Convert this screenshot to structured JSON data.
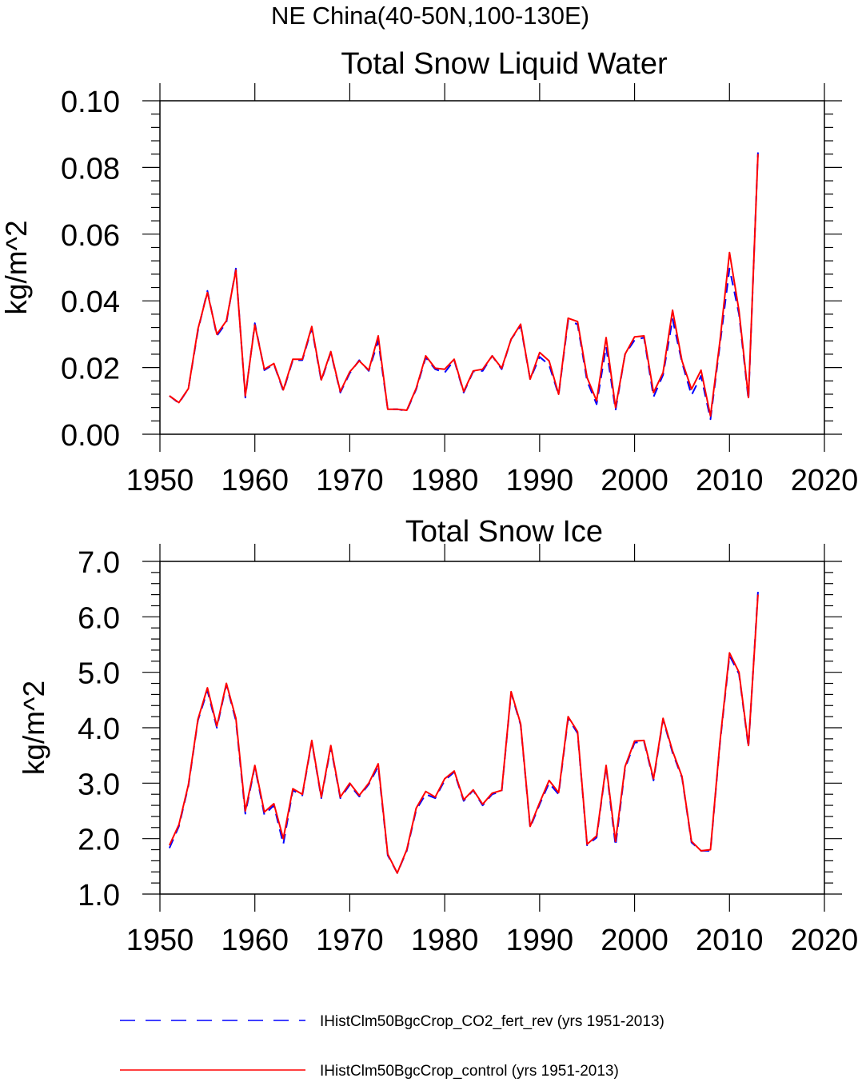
{
  "page": {
    "suptitle": "NE China(40-50N,100-130E)"
  },
  "legend": {
    "placement": "bottom",
    "items": [
      {
        "label": "IHistClm50BgcCrop_CO2_fert_rev (yrs 1951-2013)",
        "color": "#0000ff",
        "style": "dashed"
      },
      {
        "label": "IHistClm50BgcCrop_control (yrs 1951-2013)",
        "color": "#ff0000",
        "style": "solid"
      }
    ]
  },
  "chart_data": [
    {
      "type": "line",
      "title": "Total Snow Liquid Water",
      "xlabel": "",
      "ylabel": "kg/m^2",
      "xlim": [
        1950,
        2020
      ],
      "ylim": [
        0,
        0.1
      ],
      "xticks": [
        1950,
        1960,
        1970,
        1980,
        1990,
        2000,
        2010,
        2020
      ],
      "yticks": [
        0,
        0.02,
        0.04,
        0.06,
        0.08,
        0.1
      ],
      "ytick_labels": [
        "0.00",
        "0.02",
        "0.04",
        "0.06",
        "0.08",
        "0.10"
      ],
      "grid": false,
      "x": [
        1951,
        1952,
        1953,
        1954,
        1955,
        1956,
        1957,
        1958,
        1959,
        1960,
        1961,
        1962,
        1963,
        1964,
        1965,
        1966,
        1967,
        1968,
        1969,
        1970,
        1971,
        1972,
        1973,
        1974,
        1975,
        1976,
        1977,
        1978,
        1979,
        1980,
        1981,
        1982,
        1983,
        1984,
        1985,
        1986,
        1987,
        1988,
        1989,
        1990,
        1991,
        1992,
        1993,
        1994,
        1995,
        1996,
        1997,
        1998,
        1999,
        2000,
        2001,
        2002,
        2003,
        2004,
        2005,
        2006,
        2007,
        2008,
        2009,
        2010,
        2011,
        2012,
        2013
      ],
      "series": [
        {
          "name": "IHistClm50BgcCrop_CO2_fert_rev (yrs 1951-2013)",
          "color": "#0000ff",
          "style": "dashed",
          "values": [
            0.0115,
            0.0093,
            0.0137,
            0.031,
            0.043,
            0.0295,
            0.0335,
            0.0497,
            0.011,
            0.0333,
            0.0192,
            0.021,
            0.013,
            0.0222,
            0.0222,
            0.0318,
            0.016,
            0.0245,
            0.0125,
            0.0183,
            0.0222,
            0.019,
            0.028,
            0.0075,
            0.0075,
            0.007,
            0.0135,
            0.023,
            0.0195,
            0.0185,
            0.0222,
            0.0125,
            0.0188,
            0.019,
            0.0235,
            0.0195,
            0.0285,
            0.0325,
            0.0165,
            0.0232,
            0.0208,
            0.0118,
            0.034,
            0.033,
            0.016,
            0.009,
            0.0262,
            0.0072,
            0.024,
            0.0282,
            0.029,
            0.0112,
            0.0178,
            0.0345,
            0.0215,
            0.0117,
            0.0175,
            0.0045,
            0.027,
            0.0497,
            0.036,
            0.0103,
            0.0845
          ]
        },
        {
          "name": "IHistClm50BgcCrop_control (yrs 1951-2013)",
          "color": "#ff0000",
          "style": "solid",
          "values": [
            0.0115,
            0.0095,
            0.0137,
            0.0315,
            0.0425,
            0.03,
            0.034,
            0.0492,
            0.0115,
            0.0328,
            0.0195,
            0.0212,
            0.0133,
            0.0225,
            0.0225,
            0.0323,
            0.0163,
            0.0248,
            0.0128,
            0.0187,
            0.022,
            0.0192,
            0.0295,
            0.0075,
            0.0075,
            0.0072,
            0.0138,
            0.0235,
            0.0198,
            0.0195,
            0.0225,
            0.0128,
            0.019,
            0.0195,
            0.0235,
            0.0198,
            0.0285,
            0.033,
            0.0165,
            0.0245,
            0.022,
            0.012,
            0.0348,
            0.0338,
            0.017,
            0.01,
            0.029,
            0.008,
            0.024,
            0.0292,
            0.0295,
            0.0125,
            0.0185,
            0.0372,
            0.022,
            0.0135,
            0.0192,
            0.0055,
            0.028,
            0.0545,
            0.037,
            0.011,
            0.084
          ]
        }
      ]
    },
    {
      "type": "line",
      "title": "Total Snow Ice",
      "xlabel": "",
      "ylabel": "kg/m^2",
      "xlim": [
        1950,
        2020
      ],
      "ylim": [
        1.0,
        7.0
      ],
      "xticks": [
        1950,
        1960,
        1970,
        1980,
        1990,
        2000,
        2010,
        2020
      ],
      "yticks": [
        1,
        2,
        3,
        4,
        5,
        6,
        7
      ],
      "ytick_labels": [
        "1.0",
        "2.0",
        "3.0",
        "4.0",
        "5.0",
        "6.0",
        "7.0"
      ],
      "grid": false,
      "x": [
        1951,
        1952,
        1953,
        1954,
        1955,
        1956,
        1957,
        1958,
        1959,
        1960,
        1961,
        1962,
        1963,
        1964,
        1965,
        1966,
        1967,
        1968,
        1969,
        1970,
        1971,
        1972,
        1973,
        1974,
        1975,
        1976,
        1977,
        1978,
        1979,
        1980,
        1981,
        1982,
        1983,
        1984,
        1985,
        1986,
        1987,
        1988,
        1989,
        1990,
        1991,
        1992,
        1993,
        1994,
        1995,
        1996,
        1997,
        1998,
        1999,
        2000,
        2001,
        2002,
        2003,
        2004,
        2005,
        2006,
        2007,
        2008,
        2009,
        2010,
        2011,
        2012,
        2013
      ],
      "series": [
        {
          "name": "IHistClm50BgcCrop_CO2_fert_rev (yrs 1951-2013)",
          "color": "#0000ff",
          "style": "dashed",
          "values": [
            1.83,
            2.22,
            2.95,
            4.13,
            4.67,
            4.0,
            4.78,
            4.13,
            2.45,
            3.3,
            2.43,
            2.6,
            1.9,
            2.87,
            2.78,
            3.75,
            2.73,
            3.65,
            2.73,
            2.97,
            2.76,
            2.98,
            3.3,
            1.7,
            1.38,
            1.78,
            2.52,
            2.8,
            2.73,
            3.05,
            3.2,
            2.68,
            2.87,
            2.6,
            2.8,
            2.85,
            4.63,
            4.05,
            2.2,
            2.62,
            3.0,
            2.8,
            4.17,
            3.9,
            1.88,
            2.02,
            3.3,
            1.87,
            3.27,
            3.73,
            3.75,
            3.05,
            4.15,
            3.55,
            3.1,
            1.93,
            1.78,
            1.78,
            3.72,
            5.3,
            4.97,
            3.65,
            6.45
          ]
        },
        {
          "name": "IHistClm50BgcCrop_control (yrs 1951-2013)",
          "color": "#ff0000",
          "style": "solid",
          "values": [
            1.88,
            2.25,
            2.97,
            4.15,
            4.72,
            4.03,
            4.8,
            4.17,
            2.5,
            3.32,
            2.48,
            2.63,
            2.0,
            2.9,
            2.8,
            3.77,
            2.75,
            3.68,
            2.75,
            3.0,
            2.78,
            3.0,
            3.35,
            1.72,
            1.38,
            1.8,
            2.55,
            2.85,
            2.75,
            3.08,
            3.22,
            2.7,
            2.88,
            2.62,
            2.82,
            2.87,
            4.65,
            4.07,
            2.22,
            2.65,
            3.05,
            2.83,
            4.2,
            3.93,
            1.9,
            2.05,
            3.32,
            1.95,
            3.3,
            3.76,
            3.77,
            3.08,
            4.17,
            3.58,
            3.12,
            1.95,
            1.78,
            1.8,
            3.75,
            5.35,
            5.0,
            3.68,
            6.4
          ]
        }
      ]
    }
  ]
}
